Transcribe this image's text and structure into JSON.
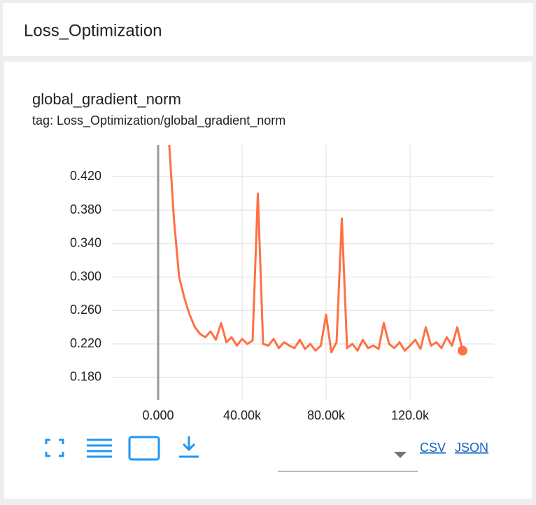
{
  "header": {
    "title": "Loss_Optimization"
  },
  "chart_data": {
    "type": "line",
    "title": "global_gradient_norm",
    "subtitle": "tag: Loss_Optimization/global_gradient_norm",
    "x": [
      5000,
      7500,
      10000,
      12500,
      15000,
      17500,
      20000,
      22500,
      25000,
      27500,
      30000,
      32500,
      35000,
      37500,
      40000,
      42500,
      45000,
      47500,
      50000,
      52500,
      55000,
      57500,
      60000,
      62500,
      65000,
      67500,
      70000,
      72500,
      75000,
      77500,
      80000,
      82500,
      85000,
      87500,
      90000,
      92500,
      95000,
      97500,
      100000,
      102500,
      105000,
      107500,
      110000,
      112500,
      115000,
      117500,
      120000,
      122500,
      125000,
      127500,
      130000,
      132500,
      135000,
      137500,
      140000,
      142500,
      145000
    ],
    "series": [
      {
        "color": "#ff7043",
        "values": [
          0.47,
          0.37,
          0.3,
          0.275,
          0.255,
          0.24,
          0.232,
          0.228,
          0.235,
          0.225,
          0.245,
          0.222,
          0.228,
          0.218,
          0.226,
          0.22,
          0.224,
          0.4,
          0.22,
          0.218,
          0.226,
          0.215,
          0.222,
          0.218,
          0.215,
          0.225,
          0.214,
          0.22,
          0.212,
          0.218,
          0.255,
          0.21,
          0.222,
          0.37,
          0.215,
          0.22,
          0.212,
          0.225,
          0.215,
          0.218,
          0.214,
          0.245,
          0.22,
          0.215,
          0.222,
          0.212,
          0.218,
          0.225,
          0.214,
          0.24,
          0.218,
          0.222,
          0.215,
          0.228,
          0.218,
          0.24,
          0.212
        ]
      }
    ],
    "xlim": [
      -22000,
      160000
    ],
    "ylim": [
      0.153,
      0.458
    ],
    "xticks": [
      {
        "value": 0,
        "label": "0.000"
      },
      {
        "value": 40000,
        "label": "40.00k"
      },
      {
        "value": 80000,
        "label": "80.00k"
      },
      {
        "value": 120000,
        "label": "120.0k"
      }
    ],
    "yticks": [
      {
        "value": 0.18,
        "label": "0.180"
      },
      {
        "value": 0.22,
        "label": "0.220"
      },
      {
        "value": 0.26,
        "label": "0.260"
      },
      {
        "value": 0.3,
        "label": "0.300"
      },
      {
        "value": 0.34,
        "label": "0.340"
      },
      {
        "value": 0.38,
        "label": "0.380"
      },
      {
        "value": 0.42,
        "label": "0.420"
      }
    ],
    "grid": true
  },
  "links": {
    "csv": "CSV",
    "json": "JSON"
  }
}
